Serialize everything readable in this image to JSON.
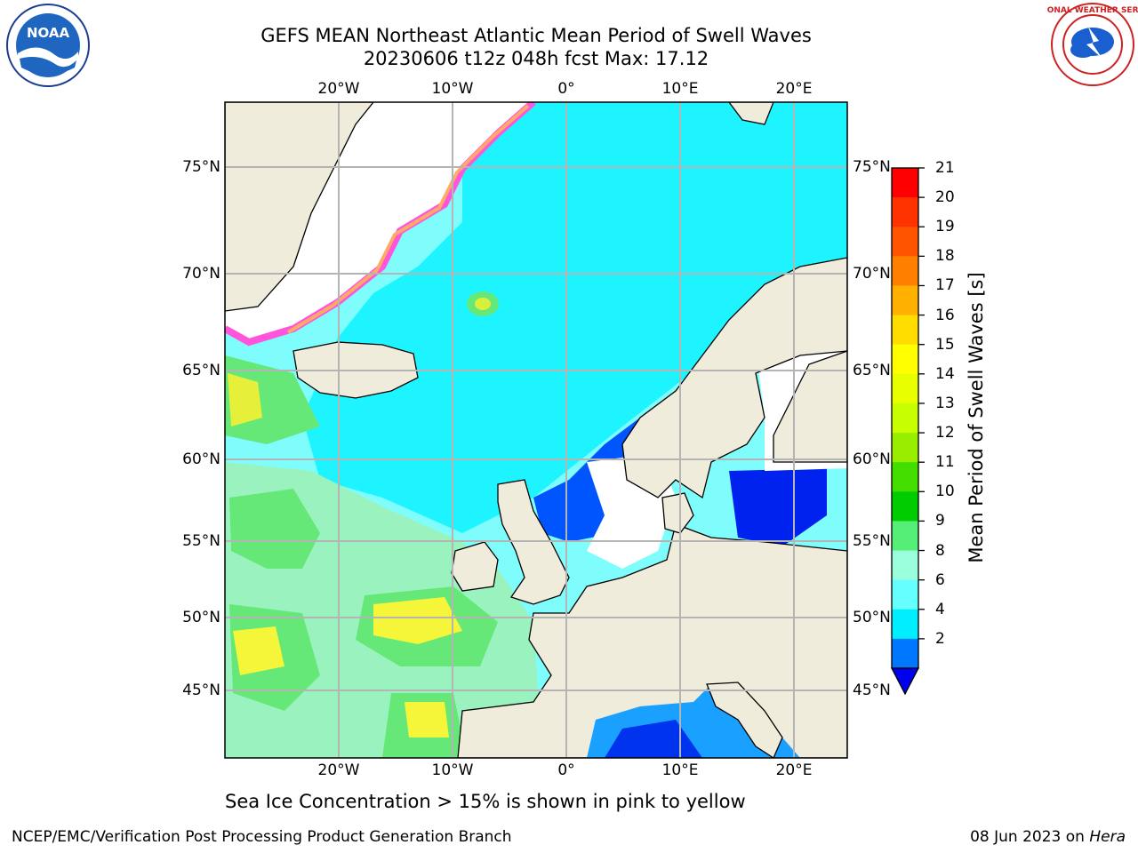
{
  "title": {
    "line1": "GEFS MEAN Northeast Atlantic Mean Period of Swell Waves",
    "line2": "20230606 t12z 048h fcst   Max: 17.12"
  },
  "map": {
    "lon_labels": [
      "20°W",
      "10°W",
      "0°",
      "10°E",
      "20°E"
    ],
    "lat_labels": [
      "75°N",
      "70°N",
      "65°N",
      "60°N",
      "55°N",
      "50°N",
      "45°N"
    ],
    "colors": {
      "land": "#efecdc",
      "coast": "#000000",
      "grid": "#b4b4b4",
      "sea_ice": "#ff55dd"
    }
  },
  "colorbar": {
    "label": "Mean Period of Swell Waves [s]",
    "ticks": [
      "21",
      "20",
      "19",
      "18",
      "17",
      "16",
      "15",
      "14",
      "13",
      "12",
      "11",
      "10",
      "9",
      "8",
      "6",
      "4",
      "2"
    ],
    "colors": [
      "#ff0000",
      "#ff3300",
      "#ff5500",
      "#ff8000",
      "#ffb000",
      "#ffdd00",
      "#ffff00",
      "#e8ff00",
      "#c8ff00",
      "#99ee00",
      "#44dd00",
      "#00cc00",
      "#55ee77",
      "#99ffdd",
      "#66ffff",
      "#00eeff",
      "#0077ff",
      "#0000ee"
    ]
  },
  "note": "Sea Ice Concentration > 15% is shown in pink to yellow",
  "footer": {
    "left": "NCEP/EMC/Verification Post Processing Product Generation Branch",
    "date": "08 Jun 2023 on",
    "machine": "Hera"
  },
  "logos": {
    "left": "NOAA",
    "right": "NATIONAL WEATHER SERVICE"
  }
}
